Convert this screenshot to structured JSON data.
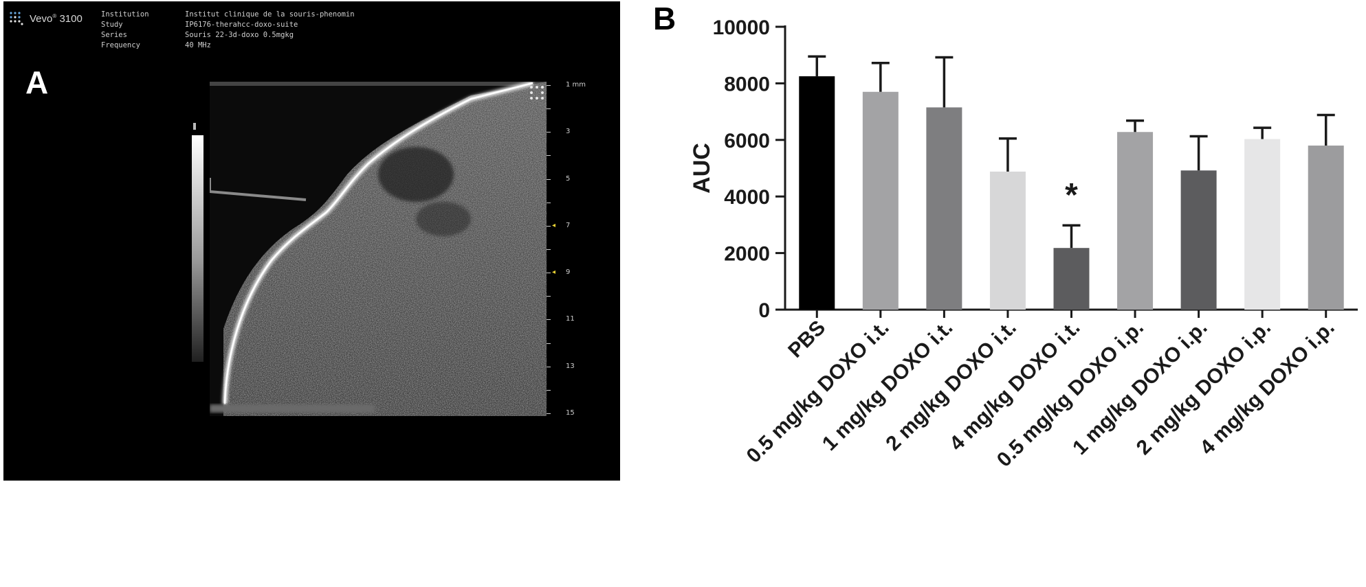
{
  "panel_a": {
    "letter": "A",
    "device": {
      "name": "Vevo",
      "trademark": "®",
      "model": "3100",
      "logo_icon": "vevo-dot-grid-icon"
    },
    "metadata": [
      {
        "label": "Institution",
        "value": "Institut clinique de la souris-phenomin"
      },
      {
        "label": "Study",
        "value": "IP6176-therahcc-doxo-suite"
      },
      {
        "label": "Series",
        "value": "Souris 22-3d-doxo 0.5mgkg"
      },
      {
        "label": "Frequency",
        "value": "40 MHz"
      }
    ],
    "depth_scale": {
      "unit": "mm",
      "labels": [
        "1 mm",
        "3",
        "5",
        "7",
        "9",
        "11",
        "13",
        "15"
      ],
      "values": [
        1,
        3,
        5,
        7,
        9,
        11,
        13,
        15
      ],
      "focus_markers_mm": [
        7,
        9
      ],
      "marker_color": "#e8d234"
    }
  },
  "panel_b": {
    "letter": "B"
  },
  "chart_data": {
    "type": "bar",
    "ylabel": "AUC",
    "xlabel": "",
    "ylim": [
      0,
      10000
    ],
    "yticks": [
      "0",
      "2000",
      "4000",
      "6000",
      "8000",
      "10000"
    ],
    "ytick_values": [
      0,
      2000,
      4000,
      6000,
      8000,
      10000
    ],
    "categories": [
      "PBS",
      "0.5 mg/kg DOXO i.t.",
      "1 mg/kg DOXO i.t.",
      "2 mg/kg DOXO i.t.",
      "4 mg/kg DOXO i.t.",
      "0.5 mg/kg DOXO i.p.",
      "1 mg/kg DOXO i.p.",
      "2 mg/kg DOXO i.p.",
      "4 mg/kg DOXO i.p."
    ],
    "values": [
      8250,
      7700,
      7150,
      4880,
      2180,
      6280,
      4920,
      6030,
      5800
    ],
    "error_upper": [
      8950,
      8720,
      8920,
      6050,
      2980,
      6680,
      6130,
      6430,
      6880
    ],
    "colors": [
      "#000000",
      "#a3a3a5",
      "#7e7e80",
      "#d7d7d8",
      "#5c5c5e",
      "#a3a3a5",
      "#5c5c5e",
      "#e6e6e7",
      "#9c9c9e"
    ],
    "significance": [
      {
        "category_index": 4,
        "symbol": "*"
      }
    ],
    "grid": false,
    "legend": "none"
  }
}
